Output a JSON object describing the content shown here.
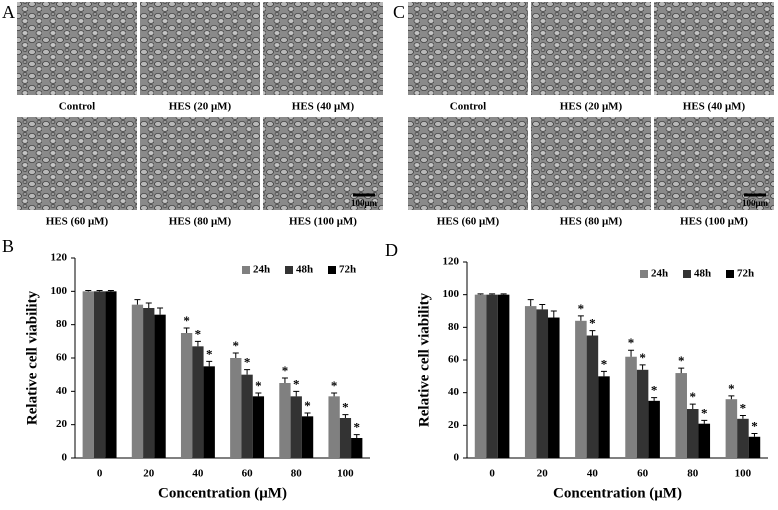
{
  "panels": [
    {
      "letter": "A",
      "images": [
        "Control",
        "HES (20 μM)",
        "HES (40 μM)",
        "HES (60 μM)",
        "HES (80 μM)",
        "HES (100 μM)"
      ],
      "scale_bar": "100μm"
    },
    {
      "letter": "C",
      "images": [
        "Control",
        "HES (20 μM)",
        "HES (40 μM)",
        "HES (60 μM)",
        "HES (80 μM)",
        "HES (100 μM)"
      ],
      "scale_bar": "100μm"
    }
  ],
  "chart_data": [
    {
      "type": "bar",
      "letter": "B",
      "ylabel": "Relative cell viability",
      "xlabel": "Concentration (μM)",
      "categories": [
        "0",
        "20",
        "40",
        "60",
        "80",
        "100"
      ],
      "series": [
        {
          "name": "24h",
          "color": "#808080",
          "values": [
            100,
            92,
            75,
            60,
            45,
            37
          ],
          "errors": [
            0.5,
            3,
            3,
            3,
            3,
            2
          ],
          "stars": [
            null,
            null,
            "*",
            "*",
            "*",
            "*"
          ]
        },
        {
          "name": "48h",
          "color": "#333333",
          "values": [
            100,
            90,
            67,
            50,
            37,
            24
          ],
          "errors": [
            0.5,
            3,
            3,
            3,
            3,
            2
          ],
          "stars": [
            null,
            null,
            "*",
            "*",
            "*",
            "*"
          ]
        },
        {
          "name": "72h",
          "color": "#000000",
          "values": [
            100,
            86,
            55,
            37,
            25,
            12
          ],
          "errors": [
            0.5,
            4,
            3,
            2,
            2,
            2
          ],
          "stars": [
            null,
            null,
            "*",
            "*",
            "*",
            "*"
          ]
        }
      ],
      "ylim": [
        0,
        120
      ],
      "yticks": [
        0,
        20,
        40,
        60,
        80,
        100,
        120
      ],
      "legend": "top-right"
    },
    {
      "type": "bar",
      "letter": "D",
      "ylabel": "Relative cell viability",
      "xlabel": "Concentration (μM)",
      "categories": [
        "0",
        "20",
        "40",
        "60",
        "80",
        "100"
      ],
      "series": [
        {
          "name": "24h",
          "color": "#808080",
          "values": [
            100,
            93,
            84,
            62,
            52,
            36
          ],
          "errors": [
            0.5,
            4,
            3,
            4,
            3,
            2
          ],
          "stars": [
            null,
            null,
            "*",
            "*",
            "*",
            "*"
          ]
        },
        {
          "name": "48h",
          "color": "#333333",
          "values": [
            100,
            91,
            75,
            54,
            30,
            24
          ],
          "errors": [
            0.5,
            3,
            3,
            3,
            3,
            2
          ],
          "stars": [
            null,
            null,
            "*",
            "*",
            "*",
            "*"
          ]
        },
        {
          "name": "72h",
          "color": "#000000",
          "values": [
            100,
            86,
            50,
            35,
            21,
            13
          ],
          "errors": [
            0.5,
            4,
            3,
            2,
            2,
            2
          ],
          "stars": [
            null,
            null,
            "*",
            "*",
            "*",
            "*"
          ]
        }
      ],
      "ylim": [
        0,
        120
      ],
      "yticks": [
        0,
        20,
        40,
        60,
        80,
        100,
        120
      ],
      "legend": "top-right"
    }
  ]
}
